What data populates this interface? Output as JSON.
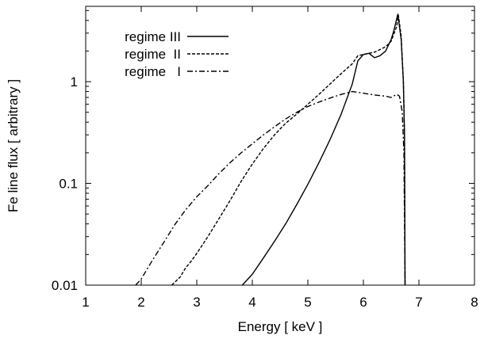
{
  "chart_data": {
    "type": "line",
    "xlabel": "Energy [ keV ]",
    "ylabel": "Fe line flux [ arbitrary ]",
    "xlim": [
      1,
      8
    ],
    "ylim": [
      0.01,
      5.5
    ],
    "yscale": "log",
    "grid": false,
    "legend_position": "top-left",
    "x_ticks": [
      "1",
      "2",
      "3",
      "4",
      "5",
      "6",
      "7",
      "8"
    ],
    "y_ticks": [
      "0.01",
      "0.1",
      "1"
    ],
    "series": [
      {
        "name": "regime III",
        "style": "solid",
        "points": [
          [
            3.82,
            0.01
          ],
          [
            4.0,
            0.0128
          ],
          [
            4.2,
            0.0185
          ],
          [
            4.4,
            0.027
          ],
          [
            4.6,
            0.04
          ],
          [
            4.8,
            0.062
          ],
          [
            5.0,
            0.098
          ],
          [
            5.2,
            0.16
          ],
          [
            5.4,
            0.27
          ],
          [
            5.6,
            0.48
          ],
          [
            5.8,
            0.95
          ],
          [
            5.9,
            1.6
          ],
          [
            6.0,
            1.85
          ],
          [
            6.1,
            1.9
          ],
          [
            6.2,
            1.72
          ],
          [
            6.3,
            1.8
          ],
          [
            6.4,
            2.0
          ],
          [
            6.5,
            2.6
          ],
          [
            6.55,
            3.2
          ],
          [
            6.62,
            4.6
          ],
          [
            6.68,
            2.6
          ],
          [
            6.72,
            1.0
          ],
          [
            6.74,
            0.3
          ],
          [
            6.75,
            0.01
          ]
        ]
      },
      {
        "name": "regime  II",
        "style": "dashed",
        "points": [
          [
            2.55,
            0.01
          ],
          [
            2.7,
            0.012
          ],
          [
            2.8,
            0.0148
          ],
          [
            2.9,
            0.0172
          ],
          [
            3.0,
            0.0205
          ],
          [
            3.2,
            0.03
          ],
          [
            3.4,
            0.045
          ],
          [
            3.6,
            0.068
          ],
          [
            3.8,
            0.105
          ],
          [
            4.0,
            0.155
          ],
          [
            4.2,
            0.22
          ],
          [
            4.4,
            0.3
          ],
          [
            4.6,
            0.39
          ],
          [
            4.8,
            0.48
          ],
          [
            5.0,
            0.6
          ],
          [
            5.2,
            0.75
          ],
          [
            5.4,
            0.95
          ],
          [
            5.6,
            1.2
          ],
          [
            5.8,
            1.5
          ],
          [
            5.9,
            1.8
          ],
          [
            6.0,
            1.85
          ],
          [
            6.2,
            1.95
          ],
          [
            6.4,
            2.2
          ],
          [
            6.5,
            2.5
          ],
          [
            6.6,
            3.5
          ],
          [
            6.63,
            4.5
          ],
          [
            6.68,
            2.8
          ],
          [
            6.72,
            1.0
          ],
          [
            6.74,
            0.3
          ],
          [
            6.75,
            0.01
          ]
        ]
      },
      {
        "name": "regime   I",
        "style": "dash-dot",
        "points": [
          [
            1.9,
            0.01
          ],
          [
            2.0,
            0.0115
          ],
          [
            2.2,
            0.0175
          ],
          [
            2.4,
            0.026
          ],
          [
            2.6,
            0.039
          ],
          [
            2.8,
            0.055
          ],
          [
            3.0,
            0.074
          ],
          [
            3.2,
            0.095
          ],
          [
            3.4,
            0.125
          ],
          [
            3.6,
            0.16
          ],
          [
            3.8,
            0.2
          ],
          [
            4.0,
            0.245
          ],
          [
            4.2,
            0.3
          ],
          [
            4.4,
            0.36
          ],
          [
            4.6,
            0.43
          ],
          [
            4.8,
            0.5
          ],
          [
            5.0,
            0.57
          ],
          [
            5.2,
            0.63
          ],
          [
            5.4,
            0.69
          ],
          [
            5.6,
            0.75
          ],
          [
            5.8,
            0.8
          ],
          [
            6.0,
            0.77
          ],
          [
            6.2,
            0.74
          ],
          [
            6.4,
            0.72
          ],
          [
            6.5,
            0.7
          ],
          [
            6.6,
            0.75
          ],
          [
            6.65,
            0.72
          ],
          [
            6.7,
            0.5
          ],
          [
            6.73,
            0.2
          ],
          [
            6.75,
            0.01
          ]
        ]
      }
    ]
  }
}
